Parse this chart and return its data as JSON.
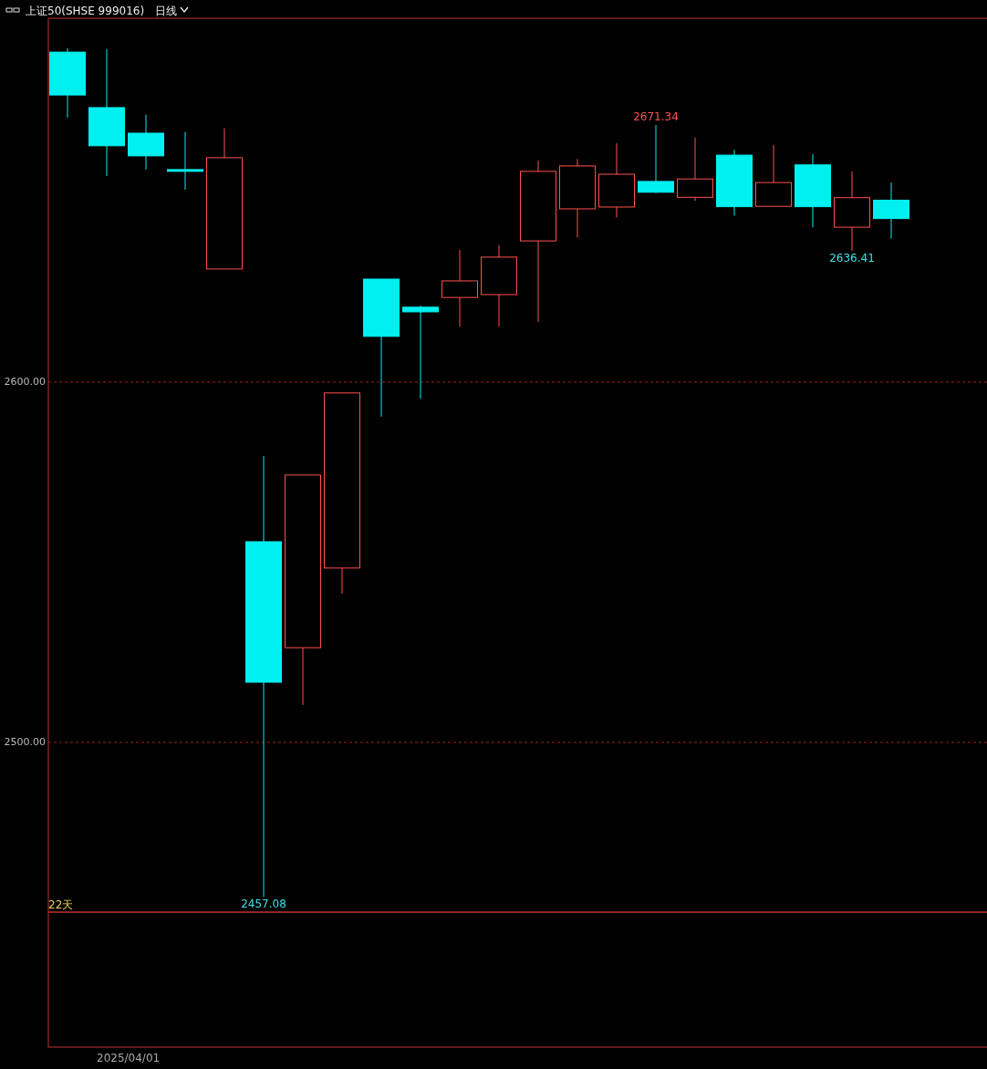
{
  "chart_data": {
    "type": "candlestick",
    "title": "上证50(SHSE 999016)",
    "subtitle": "日线",
    "categories": [
      null,
      null,
      null,
      null,
      null,
      null,
      null,
      null,
      null,
      null,
      null,
      null,
      null,
      null,
      null,
      null,
      null,
      null,
      null,
      null,
      null,
      null
    ],
    "ohlc": [
      [
        2691.6,
        2692.7,
        2673.4,
        2679.7
      ],
      [
        2676.2,
        2692.4,
        2657.2,
        2665.6
      ],
      [
        2669.1,
        2674.2,
        2659.0,
        2662.8
      ],
      [
        2659.0,
        2669.4,
        2653.4,
        2658.5
      ],
      [
        2631.4,
        2670.5,
        2631.4,
        2662.3
      ],
      [
        2555.7,
        2579.5,
        2457.08,
        2516.7
      ],
      [
        2526.3,
        2574.2,
        2510.4,
        2574.2
      ],
      [
        2548.4,
        2597.0,
        2541.3,
        2597.0
      ],
      [
        2628.6,
        2628.6,
        2590.4,
        2612.7
      ],
      [
        2620.8,
        2621.3,
        2595.4,
        2619.5
      ],
      [
        2623.5,
        2636.7,
        2615.4,
        2628.1
      ],
      [
        2624.3,
        2638.0,
        2615.4,
        2634.7
      ],
      [
        2639.2,
        2661.5,
        2616.7,
        2658.5
      ],
      [
        2648.1,
        2661.9,
        2640.1,
        2660.0
      ],
      [
        2648.6,
        2666.3,
        2645.7,
        2657.7
      ],
      [
        2655.7,
        2671.34,
        2652.5,
        2652.7
      ],
      [
        2651.3,
        2667.9,
        2650.3,
        2656.4
      ],
      [
        2663.0,
        2664.5,
        2646.2,
        2648.7
      ],
      [
        2648.8,
        2665.8,
        2648.8,
        2655.4
      ],
      [
        2660.3,
        2663.3,
        2643.0,
        2648.7
      ],
      [
        2643.0,
        2658.5,
        2636.41,
        2651.2
      ],
      [
        2650.5,
        2655.4,
        2639.8,
        2645.4
      ]
    ],
    "colors": [
      "#00f0f0",
      "#00f0f0",
      "#00f0f0",
      "#00f0f0",
      "#ff5050",
      "#00f0f0",
      "#ff5050",
      "#ff5050",
      "#00f0f0",
      "#00f0f0",
      "#ff5050",
      "#ff5050",
      "#ff5050",
      "#ff5050",
      "#ff5050",
      "#00f0f0",
      "#ff5050",
      "#00f0f0",
      "#ff5050",
      "#00f0f0",
      "#ff5050",
      "#00f0f0"
    ],
    "ylim": [
      2452.9,
      2701.0
    ],
    "yticks": [
      {
        "value": 2500,
        "label": "2500.00"
      },
      {
        "value": 2600,
        "label": "2600.00"
      }
    ],
    "grid": "y",
    "annotations": [
      {
        "text": "2671.34",
        "y": 2671.34
      },
      {
        "text": "2636.41",
        "y": 2636.41
      },
      {
        "text": "2457.08",
        "y": 2457.08
      },
      "22天",
      "2025/04/01"
    ]
  }
}
